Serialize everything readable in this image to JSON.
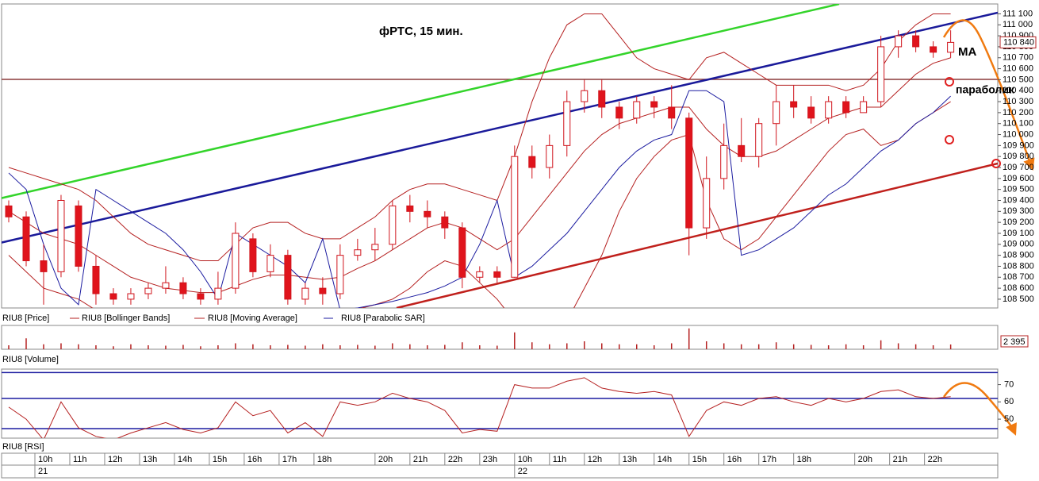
{
  "chart_data": {
    "type": "candlestick",
    "title": "фРТС, 15 мин.",
    "annotations": [
      "MA",
      "параболик"
    ],
    "name": "RIU8 [Price]",
    "x": [
      1,
      3,
      5,
      7,
      9,
      11,
      13,
      15,
      17,
      19,
      21,
      23,
      25,
      27,
      29,
      31,
      33,
      35,
      37,
      39,
      41,
      43,
      45,
      47,
      49,
      51,
      53,
      55,
      57,
      59,
      61,
      63,
      65,
      67,
      69,
      71,
      73,
      75,
      77,
      79,
      81,
      83,
      85,
      87,
      89,
      91,
      93,
      95,
      97,
      99,
      101,
      103,
      105,
      107,
      109
    ],
    "xlim": [
      0,
      114.4
    ],
    "xticks": [
      {
        "value": 4,
        "label": "10h"
      },
      {
        "value": 8,
        "label": "11h"
      },
      {
        "value": 12,
        "label": "12h"
      },
      {
        "value": 16,
        "label": "13h"
      },
      {
        "value": 20,
        "label": "14h"
      },
      {
        "value": 24,
        "label": "15h"
      },
      {
        "value": 28,
        "label": "16h"
      },
      {
        "value": 32,
        "label": "17h"
      },
      {
        "value": 36,
        "label": "18h"
      },
      {
        "value": 43,
        "label": "20h"
      },
      {
        "value": 47,
        "label": "21h"
      },
      {
        "value": 51,
        "label": "22h"
      },
      {
        "value": 55,
        "label": "23h"
      },
      {
        "value": 59,
        "label": "10h"
      },
      {
        "value": 63,
        "label": "11h"
      },
      {
        "value": 67,
        "label": "12h"
      },
      {
        "value": 71,
        "label": "13h"
      },
      {
        "value": 75,
        "label": "14h"
      },
      {
        "value": 79,
        "label": "15h"
      },
      {
        "value": 83,
        "label": "16h"
      },
      {
        "value": 87,
        "label": "17h"
      },
      {
        "value": 91,
        "label": "18h"
      },
      {
        "value": 98,
        "label": "20h"
      },
      {
        "value": 102,
        "label": "21h"
      },
      {
        "value": 106,
        "label": "22h"
      }
    ],
    "date_ticks": [
      {
        "value": 4,
        "label": "21"
      },
      {
        "value": 59,
        "label": "22"
      }
    ],
    "open": [
      109350,
      109250,
      108850,
      108750,
      109350,
      108800,
      108550,
      108500,
      108550,
      108600,
      108650,
      108550,
      108500,
      108600,
      109050,
      108750,
      108900,
      108500,
      108600,
      108550,
      108900,
      108950,
      109000,
      109350,
      109300,
      109250,
      109150,
      108700,
      108750,
      108700,
      109800,
      109700,
      109900,
      110300,
      110400,
      110250,
      110150,
      110300,
      110250,
      110150,
      109150,
      109600,
      109900,
      109800,
      110100,
      110300,
      110250,
      110150,
      110300,
      110200,
      110300,
      110800,
      110900,
      110800,
      110750
    ],
    "high": [
      109400,
      109300,
      109000,
      109450,
      109400,
      108900,
      108600,
      108600,
      108650,
      108800,
      108700,
      108600,
      108750,
      109200,
      109100,
      109000,
      108950,
      108650,
      108700,
      109000,
      109050,
      109150,
      109400,
      109450,
      109400,
      109300,
      109200,
      108800,
      108800,
      109900,
      109900,
      110000,
      110400,
      110500,
      110500,
      110300,
      110350,
      110350,
      110450,
      110200,
      109800,
      110100,
      110150,
      110150,
      110450,
      110450,
      110350,
      110350,
      110350,
      110350,
      110900,
      110950,
      110950,
      110850,
      110950
    ],
    "low": [
      109200,
      108800,
      108450,
      108700,
      108750,
      108450,
      108450,
      108450,
      108500,
      108550,
      108500,
      108450,
      108450,
      108550,
      108700,
      108700,
      108450,
      108450,
      108450,
      108500,
      108850,
      108850,
      108950,
      109200,
      109150,
      109050,
      108600,
      108650,
      108650,
      108700,
      109600,
      109600,
      109800,
      110200,
      110150,
      110050,
      110100,
      110150,
      110050,
      108900,
      109050,
      109500,
      109750,
      109700,
      109900,
      110150,
      110100,
      110100,
      110150,
      110200,
      110250,
      110700,
      110750,
      110700,
      110700
    ],
    "close": [
      109250,
      108850,
      108750,
      109400,
      108800,
      108550,
      108500,
      108550,
      108600,
      108650,
      108550,
      108500,
      108600,
      109100,
      108750,
      108900,
      108500,
      108600,
      108550,
      108900,
      108950,
      109000,
      109350,
      109300,
      109250,
      109150,
      108700,
      108750,
      108700,
      109800,
      109700,
      109900,
      110300,
      110400,
      110250,
      110150,
      110300,
      110250,
      110150,
      109150,
      109600,
      109900,
      109800,
      110100,
      110300,
      110250,
      110150,
      110300,
      110200,
      110300,
      110800,
      110900,
      110800,
      110750,
      110840
    ],
    "up_color": "#ffffff",
    "down_color": "#e0141c",
    "edge_color": "#d0141c",
    "ylim": [
      108420,
      111190
    ],
    "yticks": [
      {
        "value": 108500,
        "label": "108 500"
      },
      {
        "value": 108600,
        "label": "108 600"
      },
      {
        "value": 108700,
        "label": "108 700"
      },
      {
        "value": 108800,
        "label": "108 800"
      },
      {
        "value": 108900,
        "label": "108 900"
      },
      {
        "value": 109000,
        "label": "109 000"
      },
      {
        "value": 109100,
        "label": "109 100"
      },
      {
        "value": 109200,
        "label": "109 200"
      },
      {
        "value": 109300,
        "label": "109 300"
      },
      {
        "value": 109400,
        "label": "109 400"
      },
      {
        "value": 109500,
        "label": "109 500"
      },
      {
        "value": 109600,
        "label": "109 600"
      },
      {
        "value": 109700,
        "label": "109 700"
      },
      {
        "value": 109800,
        "label": "109 800"
      },
      {
        "value": 109900,
        "label": "109 900"
      },
      {
        "value": 110000,
        "label": "110 000"
      },
      {
        "value": 110100,
        "label": "110 100"
      },
      {
        "value": 110200,
        "label": "110 200"
      },
      {
        "value": 110300,
        "label": "110 300"
      },
      {
        "value": 110400,
        "label": "110 400"
      },
      {
        "value": 110500,
        "label": "110 500"
      },
      {
        "value": 110600,
        "label": "110 600"
      },
      {
        "value": 110700,
        "label": "110 700"
      },
      {
        "value": 110800,
        "label": "110 800"
      },
      {
        "value": 110900,
        "label": "110 900"
      },
      {
        "value": 111000,
        "label": "111 000"
      },
      {
        "value": 111100,
        "label": "111 100"
      }
    ],
    "last_price": {
      "value": 110840,
      "label": "110 840"
    },
    "overlays": [
      {
        "name": "RIU8 [Bollinger Bands]",
        "color": "#b52020",
        "upper": [
          109700,
          109650,
          109600,
          109550,
          109500,
          109400,
          109250,
          109100,
          109000,
          108950,
          108900,
          108850,
          108850,
          109000,
          109150,
          109200,
          109200,
          109100,
          109050,
          109050,
          109150,
          109250,
          109400,
          109500,
          109550,
          109550,
          109500,
          109450,
          109400,
          109800,
          110300,
          110700,
          111000,
          111100,
          111100,
          110900,
          110700,
          110600,
          110550,
          110500,
          110700,
          110750,
          110650,
          110550,
          110450,
          110450,
          110450,
          110450,
          110400,
          110450,
          110600,
          110850,
          111000,
          111100,
          111100
        ],
        "lower": [
          108900,
          108750,
          108600,
          108550,
          108500,
          108400,
          108350,
          108300,
          108300,
          108250,
          108260,
          108270,
          108270,
          108240,
          108210,
          108240,
          108240,
          108300,
          108310,
          108350,
          108410,
          108450,
          108500,
          108600,
          108750,
          108850,
          108800,
          108650,
          108500,
          108300,
          108200,
          108200,
          108300,
          108600,
          108900,
          109300,
          109600,
          109800,
          109950,
          110000,
          109400,
          109050,
          108950,
          109050,
          109250,
          109450,
          109650,
          109850,
          110000,
          110050,
          109900,
          109950,
          110100,
          110200,
          110300
        ]
      },
      {
        "name": "RIU8 [Moving Average]",
        "color": "#b52020",
        "values": [
          109300,
          109200,
          109100,
          109050,
          109000,
          108900,
          108800,
          108700,
          108650,
          108600,
          108580,
          108560,
          108560,
          108620,
          108680,
          108720,
          108720,
          108700,
          108680,
          108700,
          108780,
          108850,
          108950,
          109050,
          109150,
          109200,
          109150,
          109050,
          108950,
          109050,
          109250,
          109450,
          109650,
          109850,
          110000,
          110100,
          110150,
          110200,
          110250,
          110250,
          110050,
          109900,
          109800,
          109800,
          109850,
          109950,
          110050,
          110150,
          110200,
          110250,
          110250,
          110400,
          110550,
          110650,
          110700
        ]
      },
      {
        "name": "RIU8 [Parabolic SAR]",
        "color": "#1c1ca0",
        "values": [
          109650,
          109500,
          109000,
          108600,
          108450,
          109500,
          109400,
          109300,
          109200,
          109100,
          108950,
          108750,
          108500,
          109100,
          109000,
          108900,
          108800,
          108650,
          109050,
          108400,
          108420,
          108450,
          108480,
          108520,
          108560,
          108620,
          108700,
          109000,
          109400,
          108700,
          108800,
          108950,
          109100,
          109300,
          109500,
          109700,
          109850,
          109950,
          110000,
          110400,
          110400,
          110300,
          108900,
          108950,
          109050,
          109150,
          109300,
          109450,
          109550,
          109700,
          109850,
          109950,
          110100,
          110200,
          110350
        ]
      }
    ],
    "volume": {
      "name": "RIU8 [Volume]",
      "color": "#b52020",
      "ylim": [
        0,
        12000
      ],
      "values": [
        2000,
        5500,
        2500,
        3000,
        2500,
        2000,
        1500,
        2500,
        2000,
        1800,
        2200,
        1500,
        2000,
        3000,
        2500,
        2000,
        2200,
        1800,
        2500,
        2000,
        2200,
        1800,
        3000,
        2500,
        2000,
        2200,
        3500,
        2000,
        1800,
        8500,
        3500,
        2500,
        3000,
        4000,
        3000,
        2500,
        2500,
        2000,
        3000,
        10500,
        4000,
        3000,
        2500,
        2500,
        3500,
        2500,
        2200,
        2000,
        2500,
        2000,
        4500,
        3000,
        2500,
        2000,
        2395
      ],
      "last_label": "2 395"
    },
    "rsi": {
      "name": "RIU8 [RSI]",
      "color": "#b52020",
      "ylim": [
        39,
        79
      ],
      "yticks": [
        70,
        60,
        50
      ],
      "levels": [
        77,
        62,
        44.5
      ],
      "level_color": "#1c1ca0",
      "values": [
        57,
        50,
        38,
        60,
        45,
        40,
        38,
        42,
        45,
        48,
        44,
        42,
        45,
        60,
        52,
        55,
        42,
        48,
        40,
        60,
        58,
        60,
        65,
        62,
        60,
        55,
        42,
        44,
        43,
        70,
        68,
        68,
        72,
        74,
        68,
        66,
        65,
        66,
        64,
        40,
        55,
        60,
        58,
        62,
        63,
        60,
        58,
        62,
        60,
        62,
        66,
        67,
        63,
        62,
        63
      ]
    }
  }
}
